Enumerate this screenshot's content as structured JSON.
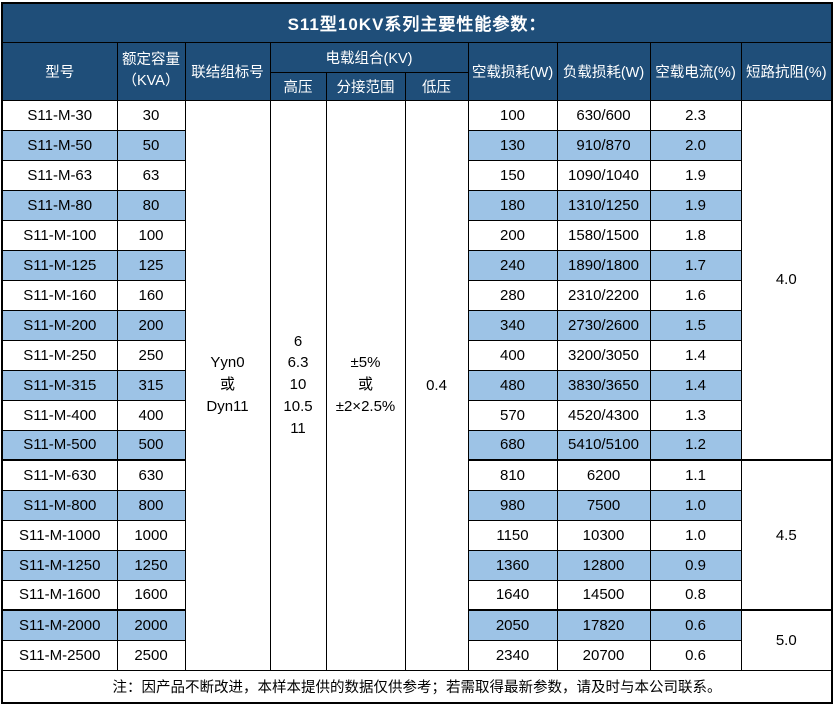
{
  "title": "S11型10KV系列主要性能参数：",
  "columns": {
    "model": "型号",
    "capacity": "额定容量\n（KVA）",
    "vector_group": "联结组标号",
    "voltage_combo": "电载组合(KV)",
    "hv": "高压",
    "tap_range": "分接范围",
    "lv": "低压",
    "no_load_loss": "空载损耗(W)",
    "load_loss": "负载损耗(W)",
    "no_load_current": "空载电流(%)",
    "impedance": "短路抗阻(%)"
  },
  "merged": {
    "vector_group": "Yyn0\n或\nDyn11",
    "hv": "6\n6.3\n10\n10.5\n11",
    "tap_range": "±5%\n或\n±2×2.5%",
    "lv": "0.4"
  },
  "rows": [
    {
      "model": "S11-M-30",
      "capacity": "30",
      "no_load_loss": "100",
      "load_loss": "630/600",
      "no_load_current": "2.3"
    },
    {
      "model": "S11-M-50",
      "capacity": "50",
      "no_load_loss": "130",
      "load_loss": "910/870",
      "no_load_current": "2.0"
    },
    {
      "model": "S11-M-63",
      "capacity": "63",
      "no_load_loss": "150",
      "load_loss": "1090/1040",
      "no_load_current": "1.9"
    },
    {
      "model": "S11-M-80",
      "capacity": "80",
      "no_load_loss": "180",
      "load_loss": "1310/1250",
      "no_load_current": "1.9"
    },
    {
      "model": "S11-M-100",
      "capacity": "100",
      "no_load_loss": "200",
      "load_loss": "1580/1500",
      "no_load_current": "1.8"
    },
    {
      "model": "S11-M-125",
      "capacity": "125",
      "no_load_loss": "240",
      "load_loss": "1890/1800",
      "no_load_current": "1.7"
    },
    {
      "model": "S11-M-160",
      "capacity": "160",
      "no_load_loss": "280",
      "load_loss": "2310/2200",
      "no_load_current": "1.6"
    },
    {
      "model": "S11-M-200",
      "capacity": "200",
      "no_load_loss": "340",
      "load_loss": "2730/2600",
      "no_load_current": "1.5"
    },
    {
      "model": "S11-M-250",
      "capacity": "250",
      "no_load_loss": "400",
      "load_loss": "3200/3050",
      "no_load_current": "1.4"
    },
    {
      "model": "S11-M-315",
      "capacity": "315",
      "no_load_loss": "480",
      "load_loss": "3830/3650",
      "no_load_current": "1.4"
    },
    {
      "model": "S11-M-400",
      "capacity": "400",
      "no_load_loss": "570",
      "load_loss": "4520/4300",
      "no_load_current": "1.3"
    },
    {
      "model": "S11-M-500",
      "capacity": "500",
      "no_load_loss": "680",
      "load_loss": "5410/5100",
      "no_load_current": "1.2"
    },
    {
      "model": "S11-M-630",
      "capacity": "630",
      "no_load_loss": "810",
      "load_loss": "6200",
      "no_load_current": "1.1"
    },
    {
      "model": "S11-M-800",
      "capacity": "800",
      "no_load_loss": "980",
      "load_loss": "7500",
      "no_load_current": "1.0"
    },
    {
      "model": "S11-M-1000",
      "capacity": "1000",
      "no_load_loss": "1150",
      "load_loss": "10300",
      "no_load_current": "1.0"
    },
    {
      "model": "S11-M-1250",
      "capacity": "1250",
      "no_load_loss": "1360",
      "load_loss": "12800",
      "no_load_current": "0.9"
    },
    {
      "model": "S11-M-1600",
      "capacity": "1600",
      "no_load_loss": "1640",
      "load_loss": "14500",
      "no_load_current": "0.8"
    },
    {
      "model": "S11-M-2000",
      "capacity": "2000",
      "no_load_loss": "2050",
      "load_loss": "17820",
      "no_load_current": "0.6"
    },
    {
      "model": "S11-M-2500",
      "capacity": "2500",
      "no_load_loss": "2340",
      "load_loss": "20700",
      "no_load_current": "0.6"
    }
  ],
  "impedance_groups": [
    {
      "value": "4.0",
      "start": 0,
      "span": 12
    },
    {
      "value": "4.5",
      "start": 12,
      "span": 5
    },
    {
      "value": "5.0",
      "start": 17,
      "span": 2
    }
  ],
  "note": "注：因产品不断改进，本样本提供的数据仅供参考；若需取得最新参数，请及时与本公司联系。",
  "colors": {
    "header_bg": "#1F4E79",
    "row_alt_bg": "#9DC3E6",
    "border": "#000000",
    "header_text": "#FFFFFF",
    "body_text": "#000000"
  }
}
